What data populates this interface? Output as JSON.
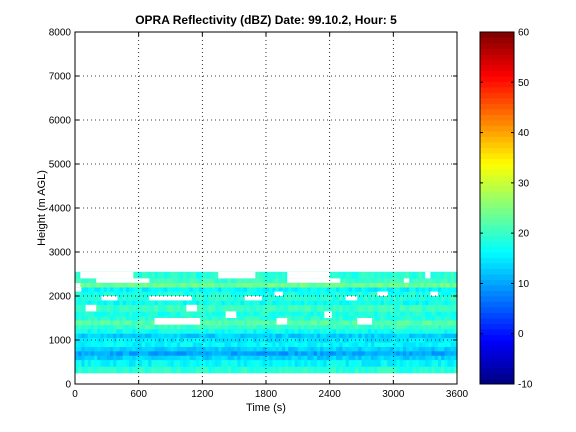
{
  "chart_data": {
    "type": "heatmap",
    "title": "OPRA Reflectivity (dBZ)  Date: 99.10.2, Hour: 5",
    "xlabel": "Time (s)",
    "ylabel": "Height (m AGL)",
    "xlim": [
      0,
      3600
    ],
    "ylim": [
      0,
      8000
    ],
    "xticks": [
      "0",
      "600",
      "1200",
      "1800",
      "2400",
      "3000",
      "3600"
    ],
    "yticks": [
      "0",
      "1000",
      "2000",
      "3000",
      "4000",
      "5000",
      "6000",
      "7000",
      "8000"
    ],
    "grid": true,
    "colorbar": {
      "clim": [
        -10,
        60
      ],
      "ticks": [
        "-10",
        "0",
        "10",
        "20",
        "30",
        "40",
        "50",
        "60"
      ],
      "colormap": "jet"
    },
    "layers": [
      {
        "y0": 250,
        "y1": 400,
        "x0": 0,
        "x1": 3600,
        "dbz": 19
      },
      {
        "y0": 400,
        "y1": 550,
        "x0": 0,
        "x1": 3600,
        "dbz": 16
      },
      {
        "y0": 550,
        "y1": 650,
        "x0": 0,
        "x1": 3600,
        "dbz": 13
      },
      {
        "y0": 650,
        "y1": 750,
        "x0": 0,
        "x1": 3600,
        "dbz": 10
      },
      {
        "y0": 750,
        "y1": 850,
        "x0": 0,
        "x1": 3600,
        "dbz": 13
      },
      {
        "y0": 850,
        "y1": 950,
        "x0": 0,
        "x1": 3600,
        "dbz": 16
      },
      {
        "y0": 950,
        "y1": 1050,
        "x0": 0,
        "x1": 3600,
        "dbz": 15
      },
      {
        "y0": 1050,
        "y1": 1150,
        "x0": 0,
        "x1": 3600,
        "dbz": 13
      },
      {
        "y0": 1150,
        "y1": 1250,
        "x0": 0,
        "x1": 3600,
        "dbz": 17
      },
      {
        "y0": 1250,
        "y1": 1350,
        "x0": 0,
        "x1": 3600,
        "dbz": 20
      },
      {
        "y0": 1350,
        "y1": 1450,
        "x0": 0,
        "x1": 3600,
        "dbz": 22
      },
      {
        "y0": 1450,
        "y1": 1550,
        "x0": 0,
        "x1": 3600,
        "dbz": 19
      },
      {
        "y0": 1550,
        "y1": 1650,
        "x0": 0,
        "x1": 3600,
        "dbz": 18
      },
      {
        "y0": 1650,
        "y1": 1800,
        "x0": 0,
        "x1": 3600,
        "dbz": 20
      },
      {
        "y0": 1800,
        "y1": 1900,
        "x0": 0,
        "x1": 3600,
        "dbz": 17
      },
      {
        "y0": 1900,
        "y1": 2000,
        "x0": 0,
        "x1": 3600,
        "dbz": 19
      },
      {
        "y0": 2000,
        "y1": 2100,
        "x0": 0,
        "x1": 3600,
        "dbz": 18
      },
      {
        "y0": 2100,
        "y1": 2200,
        "x0": 0,
        "x1": 3600,
        "dbz": 16
      },
      {
        "y0": 2200,
        "y1": 2300,
        "x0": 50,
        "x1": 3600,
        "dbz": 24
      },
      {
        "y0": 2300,
        "y1": 2400,
        "x0": 0,
        "x1": 3600,
        "dbz": 20
      },
      {
        "y0": 2400,
        "y1": 2550,
        "x0": 0,
        "x1": 3600,
        "dbz": 19
      }
    ],
    "gaps": [
      {
        "y0": 1350,
        "y1": 1500,
        "x0": 750,
        "x1": 1180
      },
      {
        "y0": 1350,
        "y1": 1500,
        "x0": 1900,
        "x1": 2000
      },
      {
        "y0": 1350,
        "y1": 1500,
        "x0": 2660,
        "x1": 2800
      },
      {
        "y0": 1500,
        "y1": 1650,
        "x0": 1420,
        "x1": 1520
      },
      {
        "y0": 1500,
        "y1": 1650,
        "x0": 2350,
        "x1": 2420
      },
      {
        "y0": 1650,
        "y1": 1800,
        "x0": 100,
        "x1": 200
      },
      {
        "y0": 1650,
        "y1": 1800,
        "x0": 1050,
        "x1": 1150
      },
      {
        "y0": 1900,
        "y1": 2000,
        "x0": 250,
        "x1": 400
      },
      {
        "y0": 1900,
        "y1": 2000,
        "x0": 700,
        "x1": 1100
      },
      {
        "y0": 1900,
        "y1": 2000,
        "x0": 1600,
        "x1": 1760
      },
      {
        "y0": 1900,
        "y1": 2000,
        "x0": 2550,
        "x1": 2660
      },
      {
        "y0": 2000,
        "y1": 2100,
        "x0": 1880,
        "x1": 1960
      },
      {
        "y0": 2000,
        "y1": 2100,
        "x0": 2850,
        "x1": 2950
      },
      {
        "y0": 2000,
        "y1": 2100,
        "x0": 3350,
        "x1": 3420
      },
      {
        "y0": 2100,
        "y1": 2200,
        "x0": 0,
        "x1": 60
      },
      {
        "y0": 2300,
        "y1": 2400,
        "x0": 200,
        "x1": 700
      },
      {
        "y0": 2300,
        "y1": 2400,
        "x0": 2000,
        "x1": 2500
      },
      {
        "y0": 2300,
        "y1": 2400,
        "x0": 3100,
        "x1": 3150
      },
      {
        "y0": 2400,
        "y1": 2550,
        "x0": 50,
        "x1": 550
      },
      {
        "y0": 2400,
        "y1": 2550,
        "x0": 1350,
        "x1": 1700
      },
      {
        "y0": 2400,
        "y1": 2550,
        "x0": 2000,
        "x1": 2400
      },
      {
        "y0": 2400,
        "y1": 2550,
        "x0": 3300,
        "x1": 3350
      }
    ]
  }
}
